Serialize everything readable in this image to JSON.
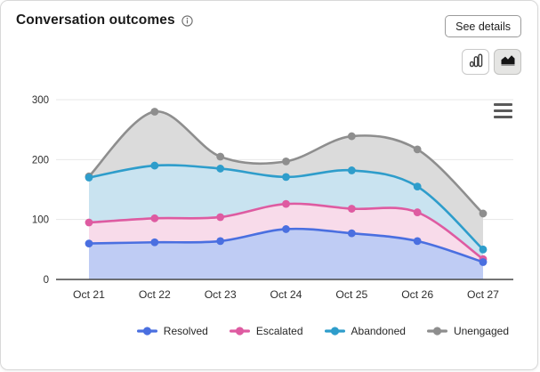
{
  "header": {
    "title": "Conversation outcomes",
    "info_icon": "info-circle",
    "see_details_label": "See details"
  },
  "toolbar": {
    "chart_type_options": [
      "bar-chart-icon",
      "area-chart-icon"
    ],
    "selected_chart_type": "area-chart-icon",
    "context_menu_icon": "hamburger-menu"
  },
  "chart_data": {
    "type": "area",
    "title": "Conversation outcomes",
    "x": [
      "Oct 21",
      "Oct 22",
      "Oct 23",
      "Oct 24",
      "Oct 25",
      "Oct 26",
      "Oct 27"
    ],
    "series": [
      {
        "name": "Resolved",
        "color": "#4a6fe0",
        "fill": "#bfccf4",
        "values": [
          60,
          62,
          64,
          84,
          77,
          64,
          29
        ]
      },
      {
        "name": "Escalated",
        "color": "#de5ba1",
        "fill": "#f8dbea",
        "values": [
          95,
          102,
          104,
          126,
          118,
          112,
          34
        ]
      },
      {
        "name": "Abandoned",
        "color": "#2e9dcb",
        "fill": "#c9e3f0",
        "values": [
          170,
          190,
          185,
          171,
          182,
          155,
          50
        ]
      },
      {
        "name": "Unengaged",
        "color": "#8e8e8e",
        "fill": "#dbdbdb",
        "values": [
          172,
          280,
          205,
          197,
          239,
          217,
          110
        ]
      }
    ],
    "ylim": [
      0,
      300
    ],
    "yticks": [
      0,
      100,
      200,
      300
    ],
    "grid": true,
    "legend_position": "bottom",
    "xlabel": "",
    "ylabel": ""
  }
}
